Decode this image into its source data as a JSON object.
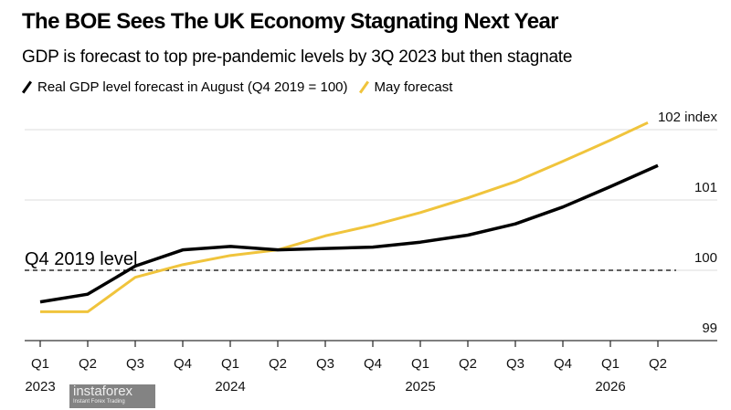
{
  "chart_data": {
    "type": "line",
    "title": "The BOE Sees The UK Economy Stagnating Next Year",
    "subtitle": "GDP is forecast to top pre-pandemic levels by 3Q 2023 but then stagnate",
    "x": [
      "Q1",
      "Q2",
      "Q3",
      "Q4",
      "Q1",
      "Q2",
      "Q3",
      "Q4",
      "Q1",
      "Q2",
      "Q3",
      "Q4",
      "Q1",
      "Q2"
    ],
    "year_labels": [
      {
        "index": 0,
        "label": "2023"
      },
      {
        "index": 4,
        "label": "2024"
      },
      {
        "index": 8,
        "label": "2025"
      },
      {
        "index": 12,
        "label": "2026"
      }
    ],
    "series": [
      {
        "name": "Real GDP level forecast in August (Q4 2019 = 100)",
        "color": "#000000",
        "values": [
          99.55,
          99.66,
          100.06,
          100.29,
          100.34,
          100.29,
          100.31,
          100.33,
          100.4,
          100.5,
          100.66,
          100.9,
          101.19,
          101.49
        ]
      },
      {
        "name": "May forecast",
        "color": "#f0c43c",
        "values": [
          99.41,
          99.41,
          99.9,
          100.08,
          100.21,
          100.29,
          100.49,
          100.64,
          100.82,
          101.03,
          101.26,
          101.55,
          101.85,
          102.1
        ]
      }
    ],
    "yticks": [
      {
        "value": 99,
        "label": "99"
      },
      {
        "value": 100,
        "label": "100"
      },
      {
        "value": 101,
        "label": "101"
      },
      {
        "value": 102,
        "label": "102 index"
      }
    ],
    "ylim": [
      99,
      102
    ],
    "reference_line": {
      "value": 100,
      "label": "Q4 2019 level"
    },
    "grid": true,
    "legend": "top-left"
  },
  "watermark": {
    "brand": "instaforex",
    "tagline": "Instant Forex Trading"
  }
}
